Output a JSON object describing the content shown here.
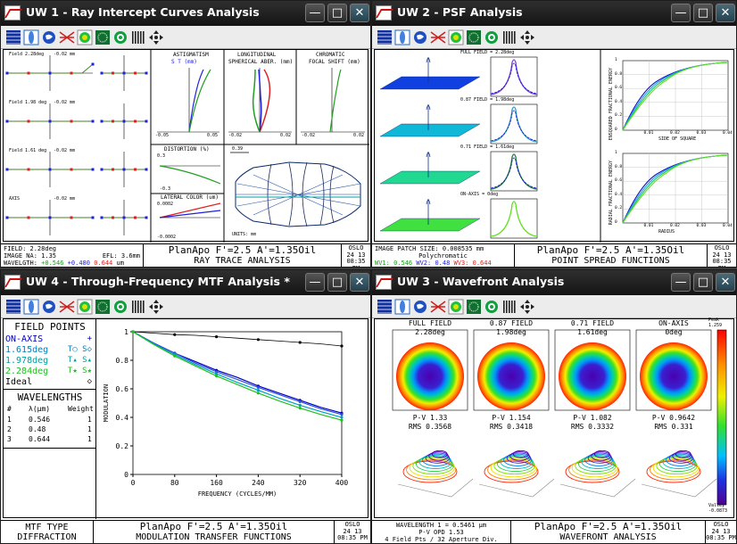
{
  "windows": {
    "uw1": {
      "title": "UW 1 - Ray Intercept Curves Analysis",
      "fields": [
        {
          "label": "Field 2.28deg",
          "scale": "-0.02 mm"
        },
        {
          "label": "Field 1.98 deg",
          "scale": "-0.02 mm"
        },
        {
          "label": "Field 1.61 deg",
          "scale": "-0.02 mm"
        },
        {
          "label": "AXIS",
          "scale": "-0.02 mm"
        }
      ],
      "astig": {
        "title": "ASTIGMATISM",
        "legend": "S  T  (mm)",
        "xmin": "-0.05",
        "xmax": "0.05"
      },
      "longsa": {
        "title1": "LONGITUDINAL",
        "title2": "SPHERICAL ABER. (mm)",
        "xmin": "-0.02",
        "xmax": "0.02"
      },
      "chrom": {
        "title1": "CHROMATIC",
        "title2": "FOCAL SHIFT (mm)",
        "xmin": "-0.02",
        "xmax": "0.02"
      },
      "distortion": {
        "title": "DISTORTION (%)",
        "ymax": "0.3",
        "ymin": "-0.3"
      },
      "latcolor": {
        "title": "LATERAL COLOR (um)",
        "ymax": "0.0002",
        "ymin": "-0.0002"
      },
      "layout": {
        "scale": "0.39",
        "units": "UNITS: mm"
      },
      "footer": {
        "left1": "FIELD: 2.28deg",
        "left2": "IMAGE NA: 1.35",
        "left2b": "EFL: 3.6mm",
        "left3a": "WAVELGTH: ",
        "wl1": "+0.546",
        "wl2": "+0.480",
        "wl3": "0.644",
        "wlunit": "um",
        "mid1": "PlanApo F'=2.5 A'=1.35Oil",
        "mid2": "RAY TRACE ANALYSIS",
        "right1": "OSLO",
        "right2": "24  13",
        "right3": "08:35 PM"
      }
    },
    "uw2": {
      "title": "UW 2 - PSF Analysis",
      "rows": [
        "FULL FIELD = 2.28deg",
        "0.87 FIELD = 1.98deg",
        "0.71 FIELD = 1.61deg",
        "ON-AXIS = 0deg"
      ],
      "ensq": {
        "ylabel": "ENSQUARED FRACTIONAL ENERGY",
        "xlabel": "SIDE OF SQUARE",
        "ticks": [
          "0.01",
          "0.02",
          "0.03",
          "0.04"
        ]
      },
      "radial": {
        "ylabel": "RADIAL FRACTIONAL ENERGY",
        "xlabel": "RADIUS",
        "ticks": [
          "0.01",
          "0.02",
          "0.03",
          "0.04"
        ]
      },
      "yticks": [
        "1",
        "0.8",
        "0.6",
        "0.4",
        "0.2",
        "0"
      ],
      "footer": {
        "left1": "IMAGE PATCH SIZE: 0.008535 mm",
        "left2": "Polychromatic",
        "w1": "WV1: 0.546",
        "w2": "WV2: 0.48",
        "w3": "WV3: 0.644",
        "mid1": "PlanApo F'=2.5 A'=1.35Oil",
        "mid2": "POINT SPREAD FUNCTIONS",
        "right1": "OSLO",
        "right2": "24  13",
        "right3": "08:35 PM"
      }
    },
    "uw4": {
      "title": "UW 4 - Through-Frequency MTF Analysis *",
      "fieldpoints_header": "FIELD POINTS",
      "fieldpoints": [
        {
          "name": "ON-AXIS",
          "marks": "+",
          "color": "#0000c0"
        },
        {
          "name": "1.615deg",
          "marks": "T○ S◇",
          "color": "#0080c0"
        },
        {
          "name": "1.978deg",
          "marks": "T▴ S▴",
          "color": "#00a0a0"
        },
        {
          "name": "2.284deg",
          "marks": "T★ S★",
          "color": "#20c020"
        },
        {
          "name": "Ideal",
          "marks": "◇",
          "color": "#000000"
        }
      ],
      "wl_header": "WAVELENGTHS",
      "wl_cols": [
        "#",
        "λ(μm)",
        "Weight"
      ],
      "wl_rows": [
        [
          "1",
          "0.546",
          "1"
        ],
        [
          "2",
          "0.48",
          "1"
        ],
        [
          "3",
          "0.644",
          "1"
        ]
      ],
      "footer": {
        "left1": "MTF TYPE",
        "left2": "DIFFRACTION",
        "mid1": "PlanApo F'=2.5 A'=1.35Oil",
        "mid2": "MODULATION TRANSFER FUNCTIONS",
        "right1": "OSLO",
        "right2": "24  13",
        "right3": "08:35 PM"
      }
    },
    "uw3": {
      "title": "UW 3 - Wavefront Analysis",
      "maps": [
        {
          "name": "FULL FIELD",
          "angle": "2.28deg",
          "pv": "P-V 1.33",
          "rms": "RMS 0.3568"
        },
        {
          "name": "0.87 FIELD",
          "angle": "1.98deg",
          "pv": "P-V 1.154",
          "rms": "RMS 0.3418"
        },
        {
          "name": "0.71 FIELD",
          "angle": "1.61deg",
          "pv": "P-V 1.082",
          "rms": "RMS 0.3332"
        },
        {
          "name": "ON-AXIS",
          "angle": "0deg",
          "pv": "P-V 0.9642",
          "rms": "RMS 0.331"
        }
      ],
      "colorbar": {
        "peak_label": "Peak",
        "peak": "1.259",
        "valley_label": "Valley",
        "valley": "-0.0873"
      },
      "footer": {
        "left1": "WAVELENGTH 1 = 0.5461 μm",
        "left2": "P-V OPD 1.53",
        "left3": "4 Field Pts / 32 Aperture Div.",
        "mid1": "PlanApo F'=2.5 A'=1.35Oil",
        "mid2": "WAVEFRONT ANALYSIS",
        "right1": "OSLO",
        "right2": "24  13",
        "right3": "08:35 PM"
      }
    }
  },
  "chart_data": {
    "type": "line",
    "title": "MODULATION TRANSFER FUNCTIONS",
    "xlabel": "FREQUENCY (CYCLES/MM)",
    "ylabel": "MODULATION",
    "xlim": [
      0,
      400
    ],
    "ylim": [
      0,
      1
    ],
    "xticks": [
      0,
      80,
      160,
      240,
      320,
      400
    ],
    "yticks": [
      0,
      0.2,
      0.4,
      0.6,
      0.8,
      1
    ],
    "x": [
      0,
      40,
      80,
      120,
      160,
      200,
      240,
      280,
      320,
      360,
      400
    ],
    "series": [
      {
        "name": "Ideal",
        "color": "#000000",
        "values": [
          1,
          0.99,
          0.98,
          0.975,
          0.965,
          0.955,
          0.945,
          0.935,
          0.925,
          0.915,
          0.9
        ]
      },
      {
        "name": "ON-AXIS",
        "color": "#0000c0",
        "values": [
          1,
          0.92,
          0.85,
          0.79,
          0.73,
          0.68,
          0.62,
          0.57,
          0.52,
          0.47,
          0.43
        ]
      },
      {
        "name": "1.615deg",
        "color": "#3050e0",
        "values": [
          1,
          0.92,
          0.85,
          0.78,
          0.72,
          0.665,
          0.61,
          0.56,
          0.51,
          0.46,
          0.42
        ]
      },
      {
        "name": "1.978deg",
        "color": "#00a0c0",
        "values": [
          1,
          0.915,
          0.84,
          0.77,
          0.705,
          0.645,
          0.59,
          0.535,
          0.485,
          0.44,
          0.4
        ]
      },
      {
        "name": "2.284deg",
        "color": "#20c020",
        "values": [
          1,
          0.91,
          0.83,
          0.76,
          0.69,
          0.63,
          0.57,
          0.515,
          0.465,
          0.42,
          0.38
        ]
      }
    ]
  }
}
